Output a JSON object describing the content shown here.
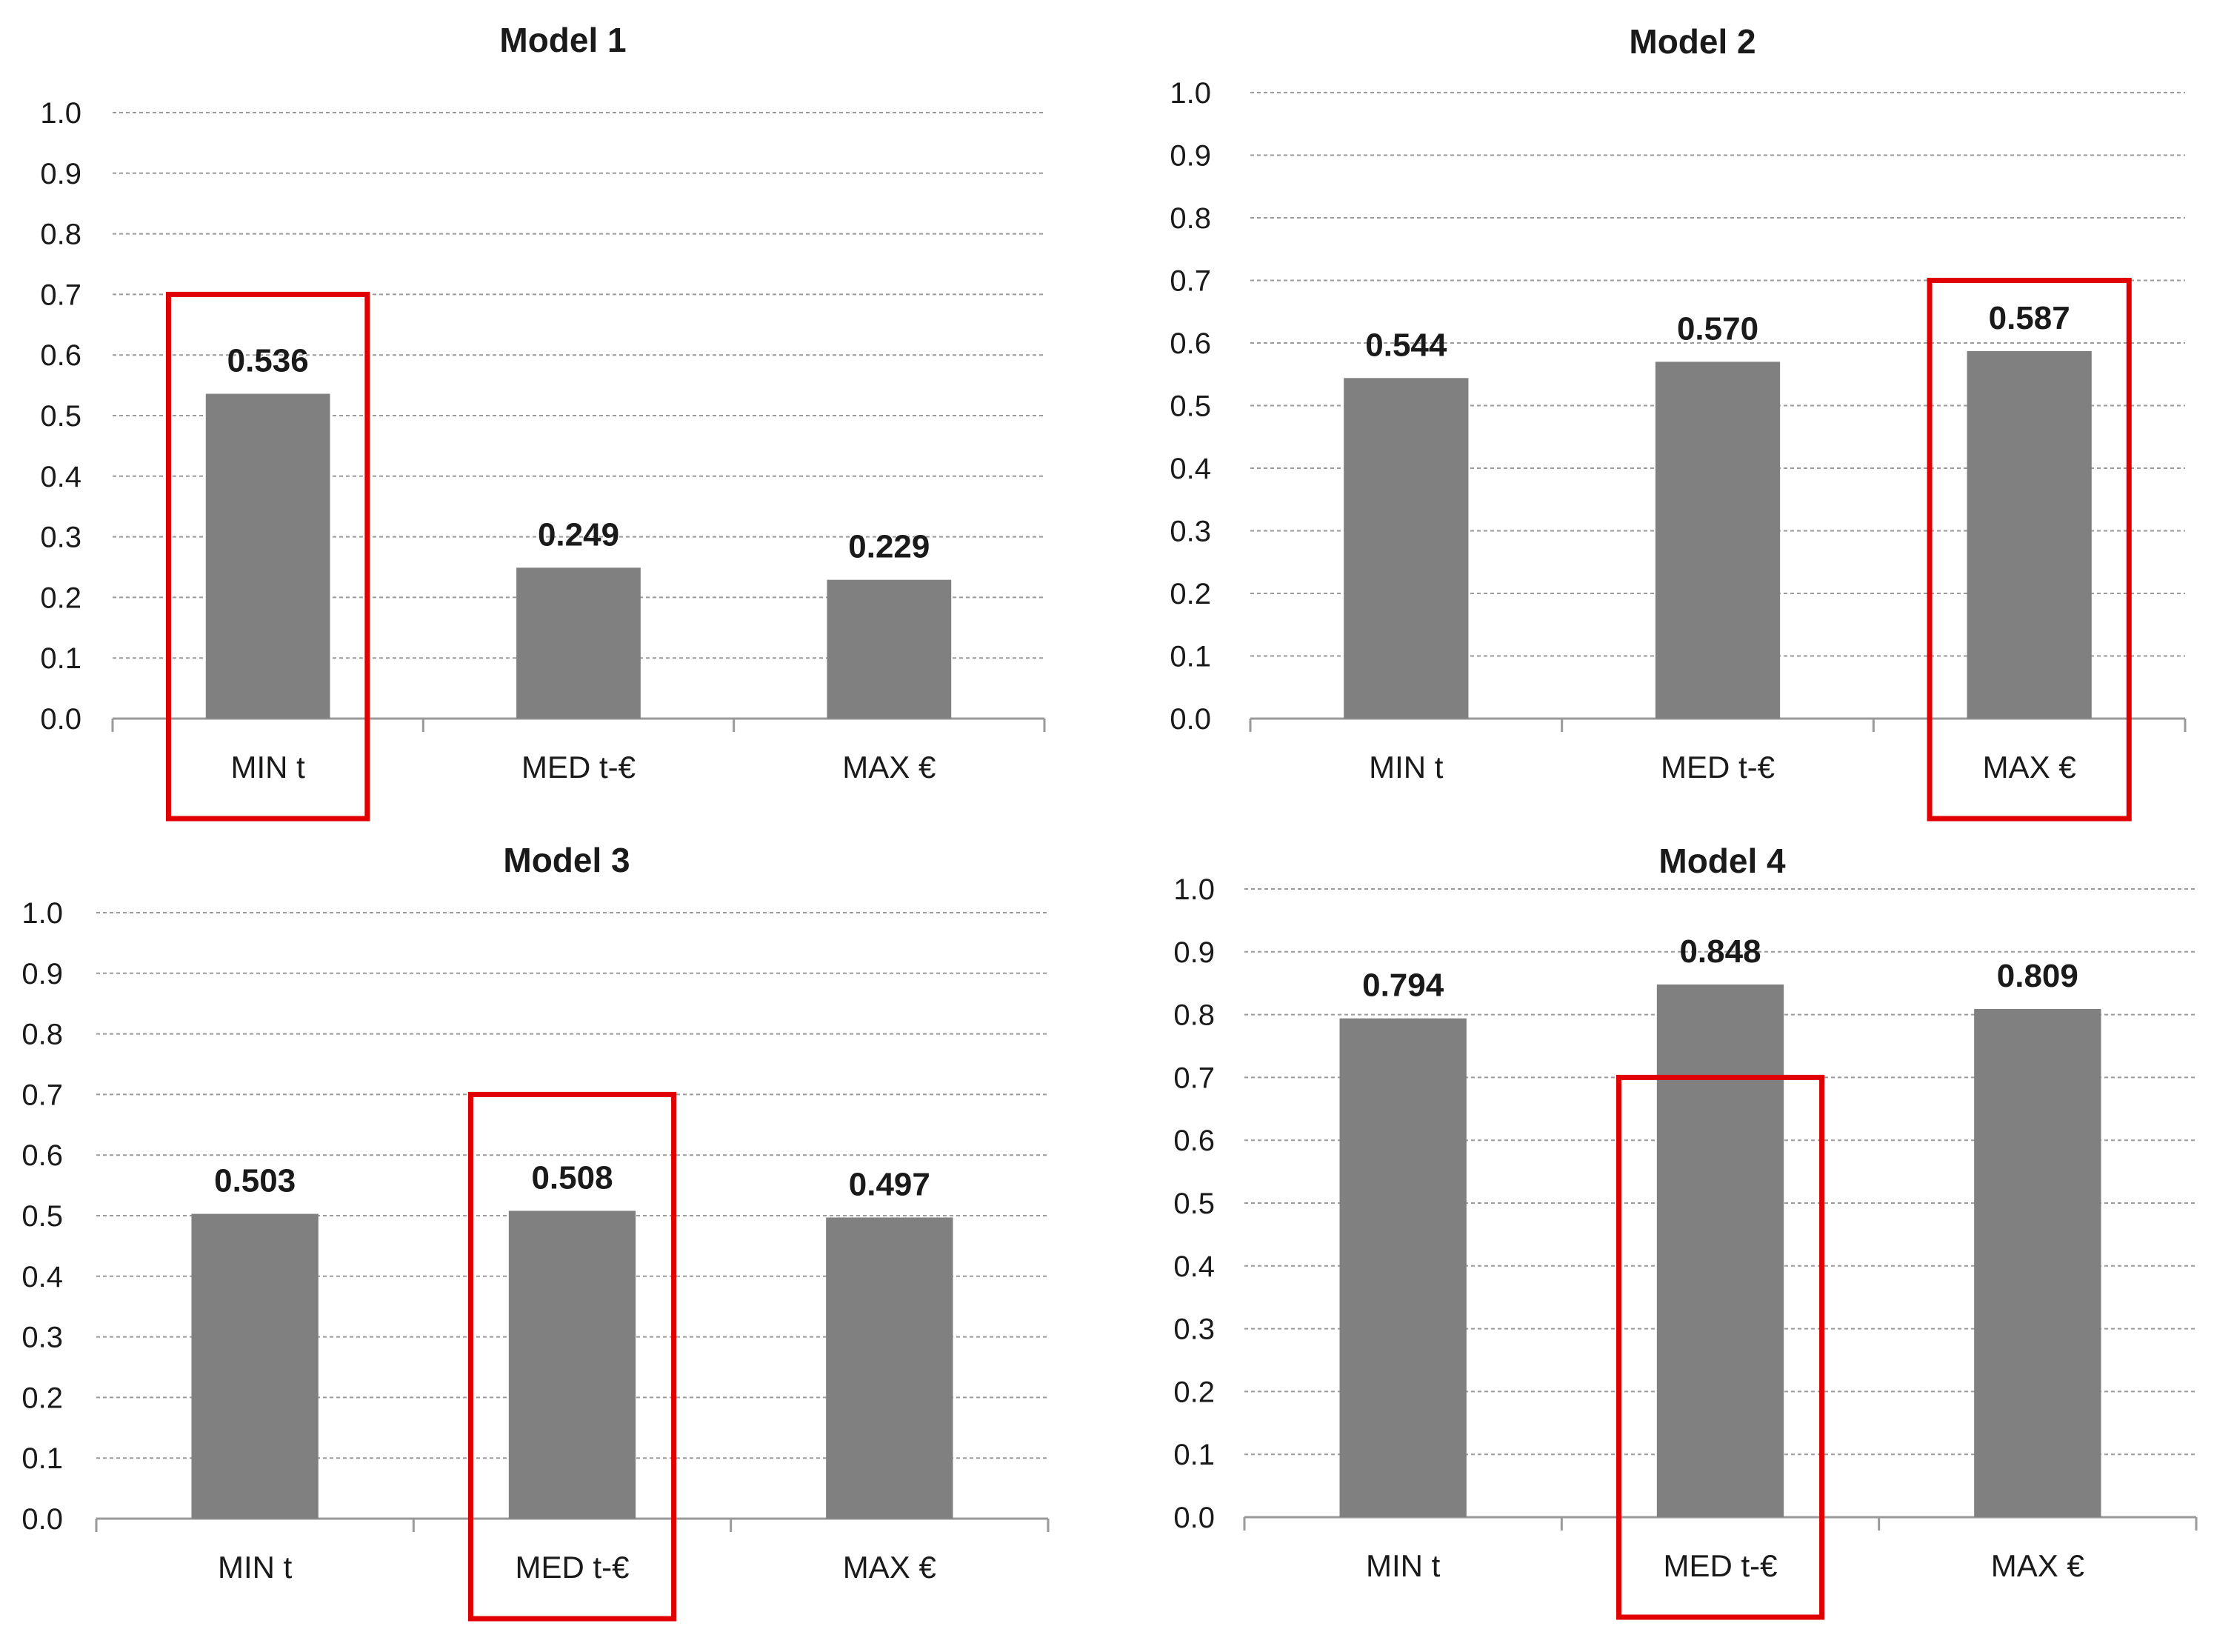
{
  "chart_data": [
    {
      "type": "bar",
      "title": "Model 1",
      "categories": [
        "MIN t",
        "MED t-€",
        "MAX €"
      ],
      "values": [
        0.536,
        0.249,
        0.229
      ],
      "data_labels": [
        "0.536",
        "0.249",
        "0.229"
      ],
      "highlighted_category": "MIN t",
      "ylim": [
        0.0,
        1.0
      ],
      "yticks": [
        "0.0",
        "0.1",
        "0.2",
        "0.3",
        "0.4",
        "0.5",
        "0.6",
        "0.7",
        "0.8",
        "0.9",
        "1.0"
      ],
      "grid": true,
      "legend": "none"
    },
    {
      "type": "bar",
      "title": "Model 2",
      "categories": [
        "MIN t",
        "MED t-€",
        "MAX €"
      ],
      "values": [
        0.544,
        0.57,
        0.587
      ],
      "data_labels": [
        "0.544",
        "0.570",
        "0.587"
      ],
      "highlighted_category": "MAX €",
      "ylim": [
        0.0,
        1.0
      ],
      "yticks": [
        "0.0",
        "0.1",
        "0.2",
        "0.3",
        "0.4",
        "0.5",
        "0.6",
        "0.7",
        "0.8",
        "0.9",
        "1.0"
      ],
      "grid": true,
      "legend": "none"
    },
    {
      "type": "bar",
      "title": "Model 3",
      "categories": [
        "MIN t",
        "MED t-€",
        "MAX €"
      ],
      "values": [
        0.503,
        0.508,
        0.497
      ],
      "data_labels": [
        "0.503",
        "0.508",
        "0.497"
      ],
      "highlighted_category": "MED t-€",
      "ylim": [
        0.0,
        1.0
      ],
      "yticks": [
        "0.0",
        "0.1",
        "0.2",
        "0.3",
        "0.4",
        "0.5",
        "0.6",
        "0.7",
        "0.8",
        "0.9",
        "1.0"
      ],
      "grid": true,
      "legend": "none"
    },
    {
      "type": "bar",
      "title": "Model 4",
      "categories": [
        "MIN t",
        "MED t-€",
        "MAX €"
      ],
      "values": [
        0.794,
        0.848,
        0.809
      ],
      "data_labels": [
        "0.794",
        "0.848",
        "0.809"
      ],
      "highlighted_category": "MED t-€",
      "ylim": [
        0.0,
        1.0
      ],
      "yticks": [
        "0.0",
        "0.1",
        "0.2",
        "0.3",
        "0.4",
        "0.5",
        "0.6",
        "0.7",
        "0.8",
        "0.9",
        "1.0"
      ],
      "grid": true,
      "legend": "none"
    }
  ],
  "colors": {
    "bar": "#808080",
    "highlight_box": "#e00000",
    "grid": "#9a9a9a",
    "axis": "#9a9a9a",
    "text": "#1a1a1a"
  }
}
